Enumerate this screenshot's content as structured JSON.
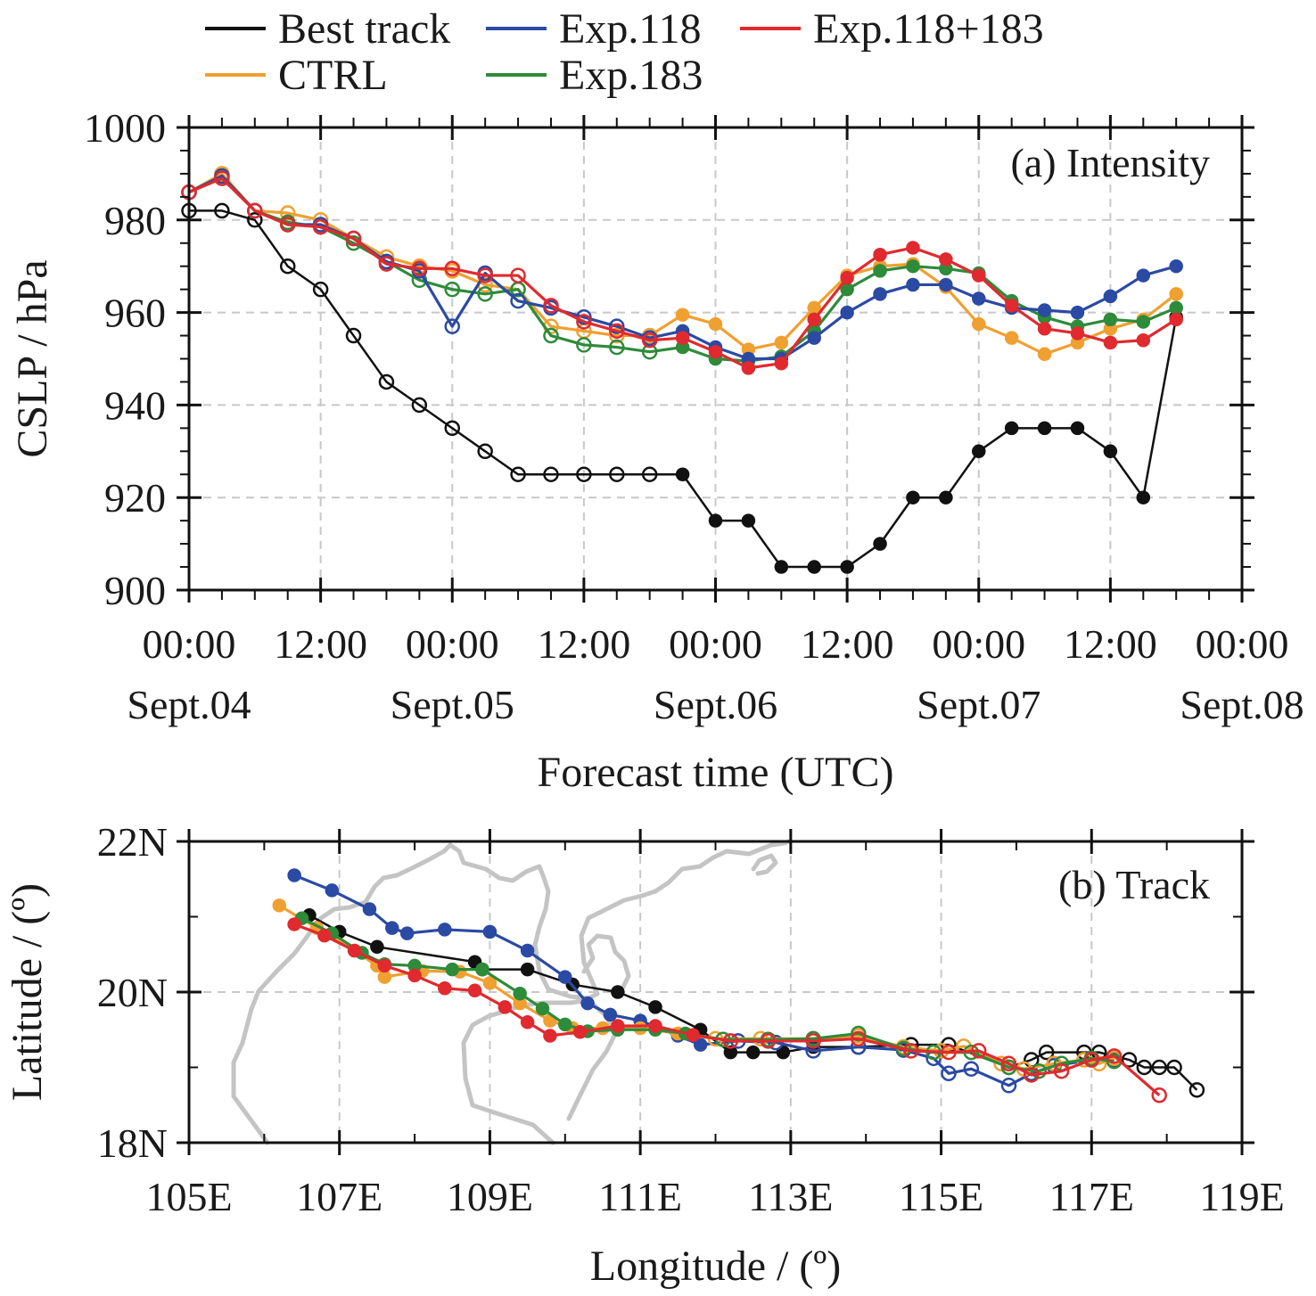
{
  "legend": [
    {
      "name": "Best track",
      "color": "#111111"
    },
    {
      "name": "Exp.118",
      "color": "#2b4aa3"
    },
    {
      "name": "Exp.118+183",
      "color": "#e02a2f"
    },
    {
      "name": "CTRL",
      "color": "#f0a030"
    },
    {
      "name": "Exp.183",
      "color": "#2e8b3a"
    }
  ],
  "chart_data": [
    {
      "type": "line",
      "title": "(a) Intensity",
      "xlabel": "Forecast time (UTC)",
      "ylabel": "CSLP / hPa",
      "xlim_hours": [
        0,
        96
      ],
      "ylim": [
        900,
        1000
      ],
      "yticks": [
        900,
        920,
        940,
        960,
        980,
        1000
      ],
      "xticks": [
        {
          "hours": 0,
          "time": "00:00",
          "date": "Sept.04"
        },
        {
          "hours": 12,
          "time": "12:00",
          "date": ""
        },
        {
          "hours": 24,
          "time": "00:00",
          "date": "Sept.05"
        },
        {
          "hours": 36,
          "time": "12:00",
          "date": ""
        },
        {
          "hours": 48,
          "time": "00:00",
          "date": "Sept.06"
        },
        {
          "hours": 60,
          "time": "12:00",
          "date": ""
        },
        {
          "hours": 72,
          "time": "00:00",
          "date": "Sept.07"
        },
        {
          "hours": 84,
          "time": "12:00",
          "date": ""
        },
        {
          "hours": 96,
          "time": "00:00",
          "date": "Sept.08"
        }
      ],
      "grid": true,
      "marker_note": "open circles before 45 h, filled circles from 45 h",
      "filled_from_hour": 45,
      "x_hours": [
        0,
        3,
        6,
        9,
        12,
        15,
        18,
        21,
        24,
        27,
        30,
        33,
        36,
        39,
        42,
        45,
        48,
        51,
        54,
        57,
        60,
        63,
        66,
        69,
        72,
        75,
        78,
        81,
        84,
        87,
        90
      ],
      "series": [
        {
          "name": "CTRL",
          "values": [
            986,
            990,
            982,
            981.5,
            980,
            976,
            972,
            970,
            969,
            966,
            965,
            957,
            956,
            955,
            955,
            959.5,
            957.5,
            952,
            953.5,
            961,
            968,
            970,
            970.5,
            965.5,
            957.5,
            954.5,
            951,
            953.5,
            956.5,
            958.5,
            964
          ]
        },
        {
          "name": "Exp.118",
          "values": [
            986,
            989.5,
            982,
            979,
            979,
            976,
            971,
            969,
            957,
            968.5,
            962.5,
            961,
            959,
            957,
            954.5,
            956,
            952.5,
            950,
            950,
            954.5,
            960,
            964,
            966,
            966,
            963,
            961,
            960.5,
            960,
            963.5,
            968,
            970
          ]
        },
        {
          "name": "Exp.183",
          "values": [
            986,
            989.5,
            982,
            979.5,
            978.5,
            975,
            971,
            967,
            965,
            964,
            965,
            955,
            953,
            952.5,
            951.5,
            952.5,
            950,
            949.5,
            950.5,
            956,
            965,
            969,
            970,
            969.5,
            968.5,
            962.5,
            959,
            957,
            958.5,
            958,
            961
          ]
        },
        {
          "name": "Exp.118+183",
          "values": [
            986,
            989,
            982,
            979,
            978.5,
            976,
            970.5,
            969.5,
            969.5,
            968,
            968,
            961.5,
            958,
            956,
            954,
            954.5,
            951.5,
            948,
            949,
            958.5,
            967.5,
            972.5,
            974,
            971.5,
            968,
            961.5,
            956.5,
            955.5,
            953.5,
            954,
            958.5
          ]
        },
        {
          "name": "Best track",
          "values": [
            982,
            982,
            980,
            970,
            965,
            955,
            945,
            940,
            935,
            930,
            925,
            925,
            925,
            925,
            925,
            925,
            915,
            915,
            905,
            905,
            905,
            910,
            920,
            920,
            930,
            935,
            935,
            935,
            930,
            920,
            959
          ]
        }
      ]
    },
    {
      "type": "line",
      "title": "(b) Track",
      "xlabel": "Longitude / (º)",
      "ylabel": "Latitude / (º)",
      "xlim": [
        105,
        119
      ],
      "ylim": [
        18,
        22
      ],
      "xticks": [
        "105E",
        "107E",
        "109E",
        "111E",
        "113E",
        "115E",
        "117E",
        "119E"
      ],
      "xtick_values": [
        105,
        107,
        109,
        111,
        113,
        115,
        117,
        119
      ],
      "yticks": [
        "18N",
        "20N",
        "22N"
      ],
      "ytick_values": [
        18,
        20,
        22
      ],
      "grid": true,
      "background": "gray coastline map",
      "series": [
        {
          "name": "Best track",
          "filled_count": 14,
          "points": [
            [
              106.6,
              21.02
            ],
            [
              107.0,
              20.8
            ],
            [
              107.5,
              20.6
            ],
            [
              108.8,
              20.4
            ],
            [
              108.9,
              20.3
            ],
            [
              109.5,
              20.3
            ],
            [
              110.1,
              20.1
            ],
            [
              110.7,
              20.0
            ],
            [
              111.2,
              19.8
            ],
            [
              111.8,
              19.5
            ],
            [
              112.2,
              19.2
            ],
            [
              112.5,
              19.2
            ],
            [
              112.9,
              19.2
            ],
            [
              113.3,
              19.27
            ],
            [
              113.9,
              19.27
            ],
            [
              114.6,
              19.3
            ],
            [
              115.1,
              19.3
            ],
            [
              115.9,
              19.0
            ],
            [
              116.2,
              19.1
            ],
            [
              116.4,
              19.2
            ],
            [
              116.9,
              19.2
            ],
            [
              117.1,
              19.2
            ],
            [
              117.5,
              19.1
            ],
            [
              117.7,
              19.0
            ],
            [
              117.9,
              19.0
            ],
            [
              118.1,
              19.0
            ],
            [
              118.4,
              18.7
            ]
          ]
        },
        {
          "name": "Exp.118",
          "filled_count": 14,
          "points": [
            [
              106.4,
              21.55
            ],
            [
              106.9,
              21.35
            ],
            [
              107.4,
              21.1
            ],
            [
              107.7,
              20.85
            ],
            [
              107.9,
              20.78
            ],
            [
              108.4,
              20.83
            ],
            [
              109.0,
              20.8
            ],
            [
              109.5,
              20.55
            ],
            [
              110.0,
              20.2
            ],
            [
              110.3,
              19.85
            ],
            [
              110.6,
              19.7
            ],
            [
              111.0,
              19.62
            ],
            [
              111.5,
              19.42
            ],
            [
              111.8,
              19.3
            ],
            [
              112.3,
              19.35
            ],
            [
              112.8,
              19.33
            ],
            [
              113.3,
              19.22
            ],
            [
              113.9,
              19.27
            ],
            [
              114.5,
              19.23
            ],
            [
              114.9,
              19.12
            ],
            [
              115.1,
              18.92
            ],
            [
              115.4,
              18.98
            ],
            [
              115.9,
              18.76
            ],
            [
              116.2,
              18.92
            ],
            [
              116.5,
              19.02
            ],
            [
              117.0,
              19.1
            ],
            [
              117.3,
              19.1
            ]
          ]
        },
        {
          "name": "CTRL",
          "filled_count": 14,
          "points": [
            [
              106.2,
              21.15
            ],
            [
              106.7,
              20.85
            ],
            [
              107.2,
              20.55
            ],
            [
              107.5,
              20.35
            ],
            [
              107.6,
              20.2
            ],
            [
              108.1,
              20.28
            ],
            [
              108.6,
              20.27
            ],
            [
              109.0,
              20.12
            ],
            [
              109.4,
              19.85
            ],
            [
              109.8,
              19.62
            ],
            [
              110.1,
              19.52
            ],
            [
              110.5,
              19.52
            ],
            [
              111.0,
              19.52
            ],
            [
              111.5,
              19.45
            ],
            [
              112.0,
              19.38
            ],
            [
              112.6,
              19.38
            ],
            [
              113.3,
              19.38
            ],
            [
              113.9,
              19.42
            ],
            [
              114.5,
              19.27
            ],
            [
              115.0,
              19.22
            ],
            [
              115.3,
              19.28
            ],
            [
              115.8,
              19.05
            ],
            [
              116.1,
              18.98
            ],
            [
              116.5,
              19.05
            ],
            [
              116.9,
              19.1
            ],
            [
              117.1,
              19.05
            ],
            [
              117.3,
              19.12
            ]
          ]
        },
        {
          "name": "Exp.183",
          "filled_count": 14,
          "points": [
            [
              106.5,
              20.98
            ],
            [
              106.9,
              20.78
            ],
            [
              107.3,
              20.52
            ],
            [
              107.6,
              20.37
            ],
            [
              108.0,
              20.35
            ],
            [
              108.5,
              20.3
            ],
            [
              108.9,
              20.3
            ],
            [
              109.4,
              19.98
            ],
            [
              109.7,
              19.78
            ],
            [
              110.0,
              19.57
            ],
            [
              110.3,
              19.48
            ],
            [
              110.7,
              19.5
            ],
            [
              111.2,
              19.5
            ],
            [
              111.6,
              19.45
            ],
            [
              112.1,
              19.37
            ],
            [
              112.7,
              19.37
            ],
            [
              113.3,
              19.38
            ],
            [
              113.9,
              19.45
            ],
            [
              114.5,
              19.25
            ],
            [
              114.9,
              19.2
            ],
            [
              115.4,
              19.2
            ],
            [
              115.9,
              19.0
            ],
            [
              116.3,
              18.95
            ],
            [
              116.6,
              19.05
            ],
            [
              117.0,
              19.12
            ],
            [
              117.3,
              19.08
            ]
          ]
        },
        {
          "name": "Exp.118+183",
          "filled_count": 14,
          "points": [
            [
              106.4,
              20.9
            ],
            [
              106.8,
              20.75
            ],
            [
              107.2,
              20.55
            ],
            [
              107.6,
              20.35
            ],
            [
              108.0,
              20.22
            ],
            [
              108.4,
              20.05
            ],
            [
              108.8,
              20.02
            ],
            [
              109.2,
              19.8
            ],
            [
              109.5,
              19.6
            ],
            [
              109.8,
              19.42
            ],
            [
              110.2,
              19.47
            ],
            [
              110.7,
              19.55
            ],
            [
              111.2,
              19.55
            ],
            [
              111.7,
              19.43
            ],
            [
              112.2,
              19.35
            ],
            [
              112.7,
              19.35
            ],
            [
              113.3,
              19.35
            ],
            [
              113.9,
              19.38
            ],
            [
              114.6,
              19.22
            ],
            [
              115.1,
              19.2
            ],
            [
              115.5,
              19.22
            ],
            [
              115.9,
              19.05
            ],
            [
              116.2,
              18.9
            ],
            [
              116.6,
              18.95
            ],
            [
              117.0,
              19.1
            ],
            [
              117.3,
              19.15
            ],
            [
              117.9,
              18.63
            ]
          ]
        }
      ]
    }
  ]
}
